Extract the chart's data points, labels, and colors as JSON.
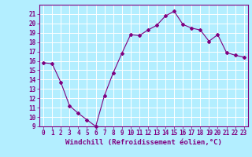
{
  "x": [
    0,
    1,
    2,
    3,
    4,
    5,
    6,
    7,
    8,
    9,
    10,
    11,
    12,
    13,
    14,
    15,
    16,
    17,
    18,
    19,
    20,
    21,
    22,
    23
  ],
  "y": [
    15.8,
    15.7,
    13.7,
    11.2,
    10.4,
    9.7,
    9.0,
    12.3,
    14.7,
    16.8,
    18.8,
    18.7,
    19.3,
    19.8,
    20.8,
    21.3,
    19.9,
    19.5,
    19.3,
    18.1,
    18.8,
    16.9,
    16.6,
    16.4
  ],
  "line_color": "#800080",
  "marker": "D",
  "marker_size": 2,
  "bg_color": "#b3eeff",
  "grid_color": "#ffffff",
  "xlabel": "Windchill (Refroidissement éolien,°C)",
  "ylim": [
    9,
    22
  ],
  "xlim": [
    -0.5,
    23.5
  ],
  "yticks": [
    9,
    10,
    11,
    12,
    13,
    14,
    15,
    16,
    17,
    18,
    19,
    20,
    21
  ],
  "xticks": [
    0,
    1,
    2,
    3,
    4,
    5,
    6,
    7,
    8,
    9,
    10,
    11,
    12,
    13,
    14,
    15,
    16,
    17,
    18,
    19,
    20,
    21,
    22,
    23
  ],
  "tick_fontsize": 5.5,
  "xlabel_fontsize": 6.5,
  "title_color": "#800080"
}
